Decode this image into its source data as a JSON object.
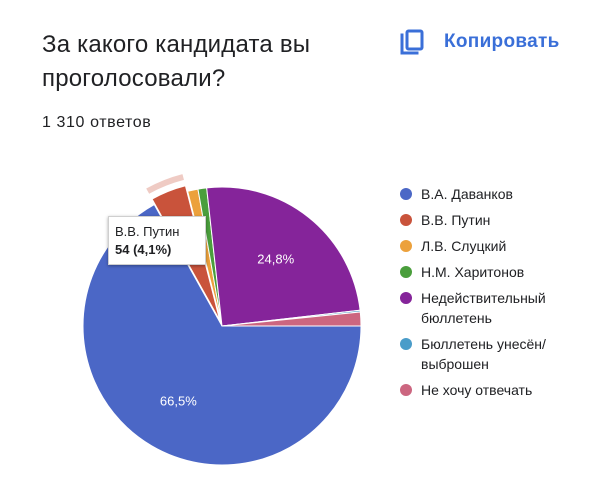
{
  "header": {
    "title": "За какого кандидата вы проголосовали?",
    "responses": "1 310 ответов",
    "copy_label": "Копировать",
    "copy_icon": "copy-icon"
  },
  "colors": {
    "accent": "#3a6fd8"
  },
  "tooltip": {
    "name": "В.В. Путин",
    "value": "54 (4,1%)"
  },
  "chart_data": {
    "type": "pie",
    "total": 1310,
    "legend_position": "right",
    "slices": [
      {
        "name": "В.А. Даванков",
        "percent": 66.5,
        "label": "66,5%",
        "color": "#4b67c6"
      },
      {
        "name": "В.В. Путин",
        "percent": 4.1,
        "count": 54,
        "label": "",
        "color": "#c9533b",
        "highlighted": true
      },
      {
        "name": "Л.В. Слуцкий",
        "percent": 1.2,
        "label": "",
        "color": "#eca13c"
      },
      {
        "name": "Н.М. Харитонов",
        "percent": 1.0,
        "label": "",
        "color": "#4a9e3c"
      },
      {
        "name": "Недействительный бюллетень",
        "percent": 24.8,
        "label": "24,8%",
        "color": "#85249a"
      },
      {
        "name": "Бюллетень унесён/ выброшен",
        "percent": 0.2,
        "label": "",
        "color": "#4a9cc9"
      },
      {
        "name": "Не хочу отвечать",
        "percent": 1.6,
        "label": "",
        "color": "#cc6680"
      }
    ]
  }
}
